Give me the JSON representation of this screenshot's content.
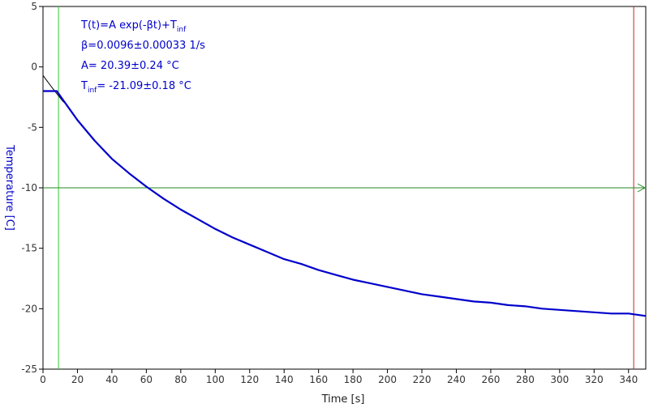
{
  "chart_data": {
    "type": "line",
    "xlabel": "Time [s]",
    "ylabel": "Temperature [C]",
    "xlim": [
      0,
      350
    ],
    "ylim": [
      -25,
      5
    ],
    "x_ticks": [
      0,
      20,
      40,
      60,
      80,
      100,
      120,
      140,
      160,
      180,
      200,
      220,
      240,
      260,
      280,
      300,
      320,
      340
    ],
    "y_ticks": [
      5,
      0,
      -5,
      -10,
      -15,
      -20,
      -25
    ],
    "grid": false,
    "annotations": [
      {
        "main": "T(t)=A exp(-βt)+T",
        "sub": "inf",
        "after": ""
      },
      {
        "main": "β=0.0096±0.00033 1/s",
        "sub": "",
        "after": ""
      },
      {
        "main": "A= 20.39±0.24 °C",
        "sub": "",
        "after": ""
      },
      {
        "main": "T",
        "sub": "inf",
        "after": "= -21.09±0.18 °C"
      }
    ],
    "fit": {
      "A": 20.39,
      "beta": 0.0096,
      "T_inf": -21.09
    },
    "data_series": {
      "x": [
        0,
        5,
        8,
        10,
        15,
        20,
        30,
        40,
        50,
        60,
        70,
        80,
        90,
        100,
        110,
        120,
        130,
        140,
        150,
        160,
        170,
        180,
        190,
        200,
        210,
        220,
        230,
        240,
        250,
        260,
        270,
        280,
        290,
        300,
        310,
        320,
        330,
        340,
        345,
        350
      ],
      "y": [
        -2.0,
        -2.0,
        -2.0,
        -2.4,
        -3.4,
        -4.4,
        -6.1,
        -7.6,
        -8.8,
        -9.9,
        -10.9,
        -11.8,
        -12.6,
        -13.4,
        -14.1,
        -14.7,
        -15.3,
        -15.9,
        -16.3,
        -16.8,
        -17.2,
        -17.6,
        -17.9,
        -18.2,
        -18.5,
        -18.8,
        -19.0,
        -19.2,
        -19.4,
        -19.5,
        -19.7,
        -19.8,
        -20.0,
        -20.1,
        -20.2,
        -20.3,
        -20.4,
        -20.4,
        -20.5,
        -20.6
      ]
    },
    "cursors": [
      {
        "axis": "x",
        "value": 9,
        "color": "#33cc33"
      },
      {
        "axis": "x",
        "value": 343,
        "color": "#cc2222"
      },
      {
        "axis": "y",
        "value": -10,
        "color": "#228822"
      }
    ],
    "colors": {
      "data": "#0000cc",
      "fit": "#000000",
      "axis": "#000000"
    }
  }
}
